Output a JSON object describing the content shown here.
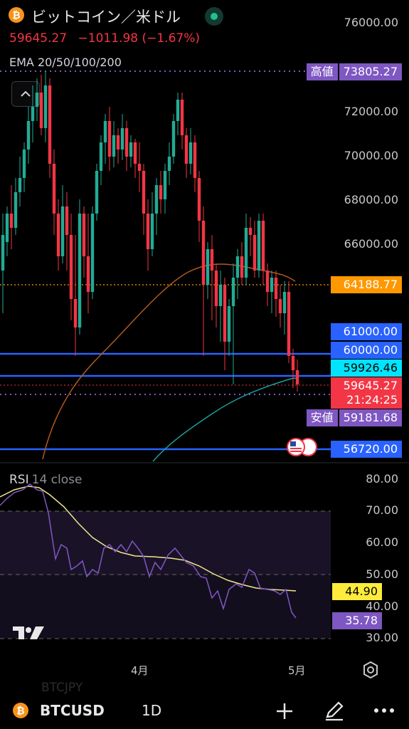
{
  "header": {
    "coin_logo": "bitcoin-logo",
    "title": "ビットコイン／米ドル",
    "price": "59645.27",
    "change": "−1011.98",
    "change_pct": "(−1.67%)",
    "indicator": "EMA 20/50/100/200",
    "collapse_icon": "chevron-up-icon"
  },
  "price_axis": {
    "ticks": [
      "76000.00",
      "72000.00",
      "70000.00",
      "68000.00",
      "66000.00"
    ],
    "high_label": "高値",
    "high_value": "73805.27",
    "low_label": "安値",
    "low_value": "59181.68",
    "level_64188": "64188.77",
    "level_61000": "61000.00",
    "level_60000": "60000.00",
    "level_59926": "59926.46",
    "current_price": "59645.27",
    "countdown": "21:24:25",
    "level_56720": "56720.00",
    "colors": {
      "up": "#22ab94",
      "down": "#f23645",
      "purple": "#7e57c2",
      "blue": "#2962ff",
      "teal": "#00bcd4",
      "orange": "#ff9800"
    }
  },
  "rsi": {
    "title": "RSI",
    "params": "14 close",
    "ticks": [
      "80.00",
      "70.00",
      "60.00",
      "50.00",
      "40.00",
      "30.00"
    ],
    "ma_value": "44.90",
    "rsi_value": "35.78"
  },
  "time_axis": {
    "labels": [
      "4月",
      "5月"
    ]
  },
  "bottom_bar": {
    "ghost_symbol": "BTCJPY",
    "symbol": "BTCUSD",
    "interval": "1D",
    "icons": [
      "plus-icon",
      "pencil-icon",
      "more-icon"
    ]
  }
}
